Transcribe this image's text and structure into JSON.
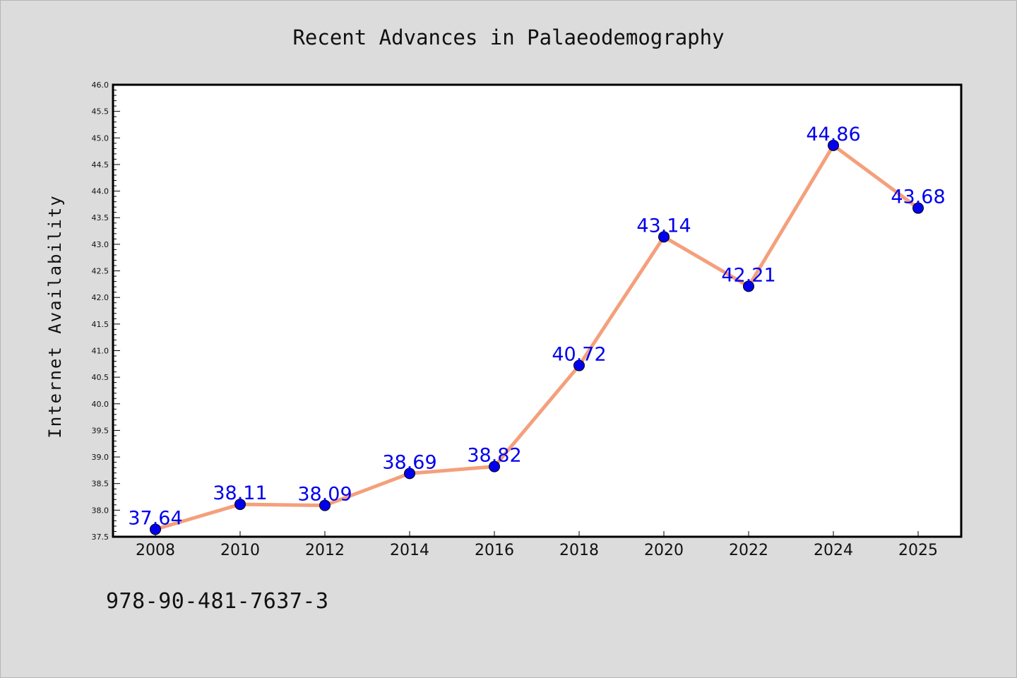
{
  "isbn": "978-90-481-7637-3",
  "chart_data": {
    "type": "line",
    "title": "Recent Advances in Palaeodemography",
    "xlabel": "",
    "ylabel": "Internet Availability",
    "categories": [
      "2008",
      "2010",
      "2012",
      "2014",
      "2016",
      "2018",
      "2020",
      "2022",
      "2024",
      "2025"
    ],
    "series": [
      {
        "values": [
          37.64,
          38.11,
          38.09,
          38.69,
          38.82,
          40.72,
          43.14,
          42.21,
          44.86,
          43.68
        ],
        "data_labels": [
          "37.64",
          "38.11",
          "38.09",
          "38.69",
          "38.82",
          "40.72",
          "43.14",
          "42.21",
          "44.86",
          "43.68"
        ]
      }
    ],
    "ylim": [
      37.5,
      46.0
    ],
    "yticks": [
      "37.5",
      "38.0",
      "38.5",
      "39.0",
      "39.5",
      "40.0",
      "40.5",
      "41.0",
      "41.5",
      "42.0",
      "42.5",
      "43.0",
      "43.5",
      "44.0",
      "44.5",
      "45.0",
      "45.5",
      "46.0"
    ],
    "grid": false,
    "legend": "none",
    "colors": {
      "line": "#f4a07c",
      "marker": "#0000ee",
      "label": "#0000ee",
      "background": "#dcdcdc",
      "plot_area": "#ffffff"
    }
  }
}
